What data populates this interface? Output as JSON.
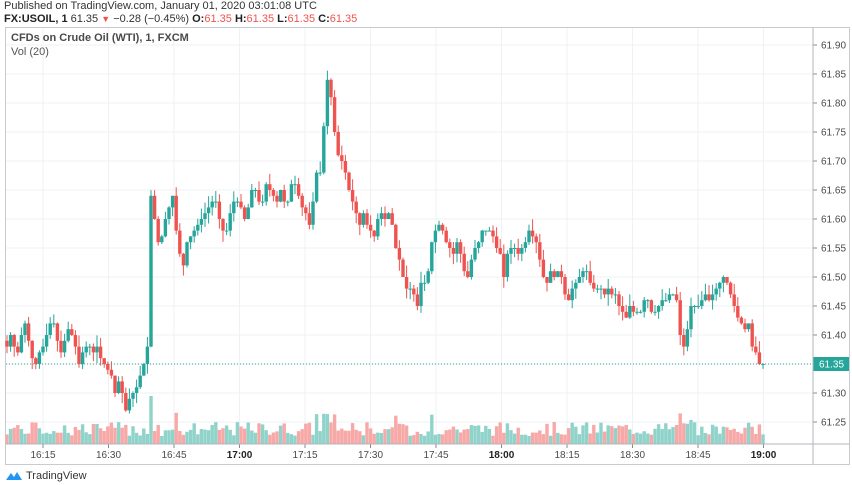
{
  "header": {
    "published": "Published on TradingView.com, January 01, 2020 03:01:08 UTC",
    "symbol": "FX:USOIL, 1",
    "last": "61.35",
    "change_arrow": "▼",
    "change": "−0.28 (−0.45%)",
    "o_label": "O:",
    "o": "61.35",
    "h_label": "H:",
    "h": "61.35",
    "l_label": "L:",
    "l": "61.35",
    "c_label": "C:",
    "c": "61.35"
  },
  "legend": {
    "title": "CFDs on Crude Oil (WTI), 1, FXCM",
    "volume": "Vol (20)"
  },
  "footer": {
    "brand": "TradingView"
  },
  "colors": {
    "up": "#26a69a",
    "down": "#ef5350",
    "up_vol": "#8fd3ca",
    "down_vol": "#f7a9a7",
    "grid": "#eef2f6",
    "axis_border": "#b2b5be",
    "last_price_bg": "#26a69a"
  },
  "chart_data": {
    "type": "candlestick",
    "title": "CFDs on Crude Oil (WTI), 1, FXCM",
    "symbol": "FX:USOIL",
    "interval": "1 minute",
    "xlabel": "",
    "ylabel": "",
    "ylim": [
      61.2,
      61.93
    ],
    "y_ticks": [
      "61.90",
      "61.85",
      "61.80",
      "61.75",
      "61.70",
      "61.65",
      "61.60",
      "61.55",
      "61.50",
      "61.45",
      "61.40",
      "61.35",
      "61.30",
      "61.25"
    ],
    "x_ticks": [
      {
        "label": "16:15",
        "bold": false
      },
      {
        "label": "16:30",
        "bold": false
      },
      {
        "label": "16:45",
        "bold": false
      },
      {
        "label": "17:00",
        "bold": true
      },
      {
        "label": "17:15",
        "bold": false
      },
      {
        "label": "17:30",
        "bold": false
      },
      {
        "label": "17:45",
        "bold": false
      },
      {
        "label": "18:00",
        "bold": true
      },
      {
        "label": "18:15",
        "bold": false
      },
      {
        "label": "18:30",
        "bold": false
      },
      {
        "label": "18:45",
        "bold": false
      },
      {
        "label": "19:00",
        "bold": true
      }
    ],
    "last_price": "61.35",
    "grid": true,
    "volume_indicator": "Vol (20)",
    "close_series": [
      61.38,
      61.4,
      61.38,
      61.37,
      61.4,
      61.42,
      61.39,
      61.36,
      61.35,
      61.37,
      61.38,
      61.4,
      61.42,
      61.42,
      61.39,
      61.37,
      61.39,
      61.41,
      61.4,
      61.38,
      61.35,
      61.37,
      61.38,
      61.38,
      61.37,
      61.38,
      61.36,
      61.35,
      61.34,
      61.33,
      61.3,
      61.32,
      61.3,
      61.27,
      61.29,
      61.3,
      61.31,
      61.33,
      61.35,
      61.38,
      61.64,
      61.6,
      61.56,
      61.57,
      61.6,
      61.62,
      61.64,
      61.58,
      61.54,
      61.52,
      61.56,
      61.57,
      61.58,
      61.59,
      61.6,
      61.61,
      61.62,
      61.63,
      61.63,
      61.6,
      61.58,
      61.58,
      61.61,
      61.63,
      61.63,
      61.62,
      61.6,
      61.62,
      61.65,
      61.65,
      61.63,
      61.63,
      61.66,
      61.65,
      61.64,
      61.63,
      61.65,
      61.63,
      61.63,
      61.66,
      61.66,
      61.64,
      61.62,
      61.61,
      61.59,
      61.63,
      61.68,
      61.68,
      61.76,
      61.84,
      61.81,
      61.75,
      61.71,
      61.7,
      61.68,
      61.65,
      61.63,
      61.61,
      61.59,
      61.61,
      61.59,
      61.58,
      61.57,
      61.6,
      61.61,
      61.6,
      61.61,
      61.59,
      61.55,
      61.53,
      61.5,
      61.48,
      61.48,
      61.47,
      61.45,
      61.49,
      61.49,
      61.51,
      61.56,
      61.58,
      61.59,
      61.58,
      61.56,
      61.55,
      61.54,
      61.56,
      61.54,
      61.51,
      61.5,
      61.53,
      61.55,
      61.56,
      61.58,
      61.58,
      61.58,
      61.57,
      61.55,
      61.54,
      61.5,
      61.54,
      61.55,
      61.55,
      61.54,
      61.55,
      61.56,
      61.58,
      61.57,
      61.56,
      61.53,
      61.5,
      61.49,
      61.51,
      61.5,
      61.51,
      61.5,
      61.47,
      61.46,
      61.48,
      61.49,
      61.5,
      61.51,
      61.51,
      61.49,
      61.48,
      61.48,
      61.48,
      61.47,
      61.48,
      61.47,
      61.47,
      61.45,
      61.44,
      61.43,
      61.45,
      61.44,
      61.44,
      61.44,
      61.46,
      61.46,
      61.44,
      61.44,
      61.45,
      61.46,
      61.46,
      61.47,
      61.47,
      61.46,
      61.4,
      61.38,
      61.41,
      61.45,
      61.45,
      61.45,
      61.46,
      61.47,
      61.46,
      61.47,
      61.48,
      61.49,
      61.5,
      61.49,
      61.47,
      61.45,
      61.43,
      61.42,
      61.41,
      61.42,
      61.38,
      61.37,
      61.35,
      61.35
    ],
    "volume_relative": "bars along bottom, peak at ~16:37 breakout candle"
  }
}
